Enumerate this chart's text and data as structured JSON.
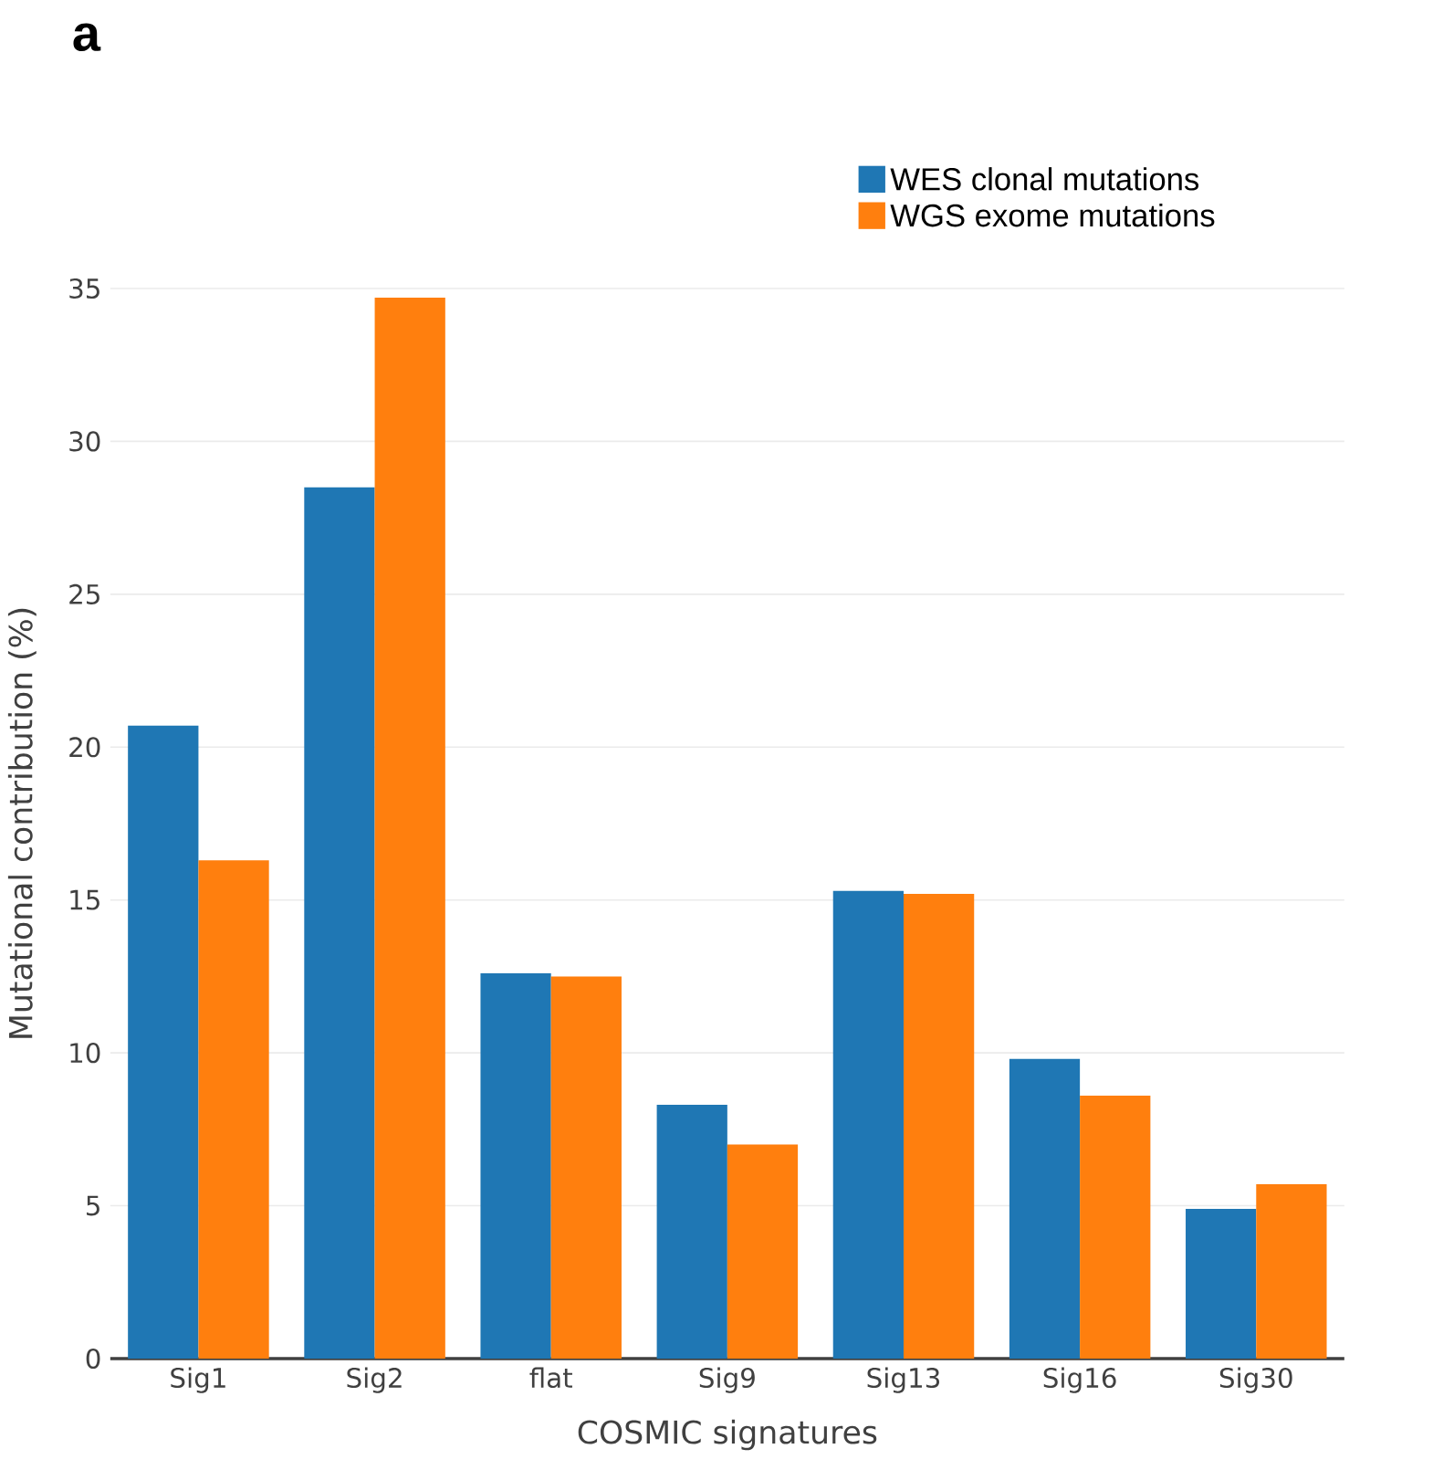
{
  "chart_data": {
    "type": "bar",
    "categories": [
      "Sig1",
      "Sig2",
      "flat",
      "Sig9",
      "Sig13",
      "Sig16",
      "Sig30"
    ],
    "series": [
      {
        "name": "WES clonal mutations",
        "color": "#1f77b4",
        "values": [
          20.7,
          28.5,
          12.6,
          8.3,
          15.3,
          9.8,
          4.9
        ]
      },
      {
        "name": "WGS exome mutations",
        "color": "#ff7f0e",
        "values": [
          16.3,
          34.7,
          12.5,
          7.0,
          15.2,
          8.6,
          5.7
        ]
      }
    ],
    "xlabel": "COSMIC signatures",
    "ylabel": "Mutational contribution (%)",
    "ylim": [
      0,
      35
    ],
    "yticks": [
      0,
      5,
      10,
      15,
      20,
      25,
      30,
      35
    ],
    "grid": "y",
    "legend": "top right",
    "annotations": [
      "a"
    ]
  }
}
